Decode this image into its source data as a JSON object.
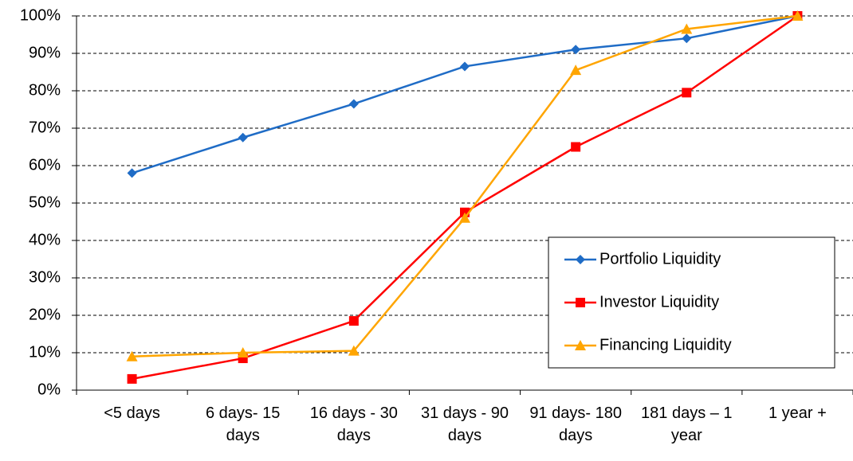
{
  "chart_data": {
    "type": "line",
    "categories": [
      "<5 days",
      "6 days- 15 days",
      "16 days - 30 days",
      "31 days - 90 days",
      "91 days- 180 days",
      "181 days – 1 year",
      "1 year +"
    ],
    "series": [
      {
        "name": "Portfolio Liquidity",
        "color": "#1f6cc6",
        "marker": "diamond",
        "values": [
          58,
          67.5,
          76.5,
          86.5,
          91,
          94,
          100
        ]
      },
      {
        "name": "Investor Liquidity",
        "color": "#ff0000",
        "marker": "square",
        "values": [
          3,
          8.5,
          18.5,
          47.5,
          65,
          79.5,
          100
        ]
      },
      {
        "name": "Financing Liquidity",
        "color": "#ffa500",
        "marker": "triangle",
        "values": [
          9,
          10,
          10.5,
          46,
          85.5,
          96.5,
          100
        ]
      }
    ],
    "ylim": [
      0,
      100
    ],
    "yticks": [
      {
        "value": 0,
        "label": "0%"
      },
      {
        "value": 10,
        "label": "10%"
      },
      {
        "value": 20,
        "label": "20%"
      },
      {
        "value": 30,
        "label": "30%"
      },
      {
        "value": 40,
        "label": "40%"
      },
      {
        "value": 50,
        "label": "50%"
      },
      {
        "value": 60,
        "label": "60%"
      },
      {
        "value": 70,
        "label": "70%"
      },
      {
        "value": 80,
        "label": "80%"
      },
      {
        "value": 90,
        "label": "90%"
      },
      {
        "value": 100,
        "label": "100%"
      }
    ],
    "grid": true,
    "legend": "lower right"
  }
}
